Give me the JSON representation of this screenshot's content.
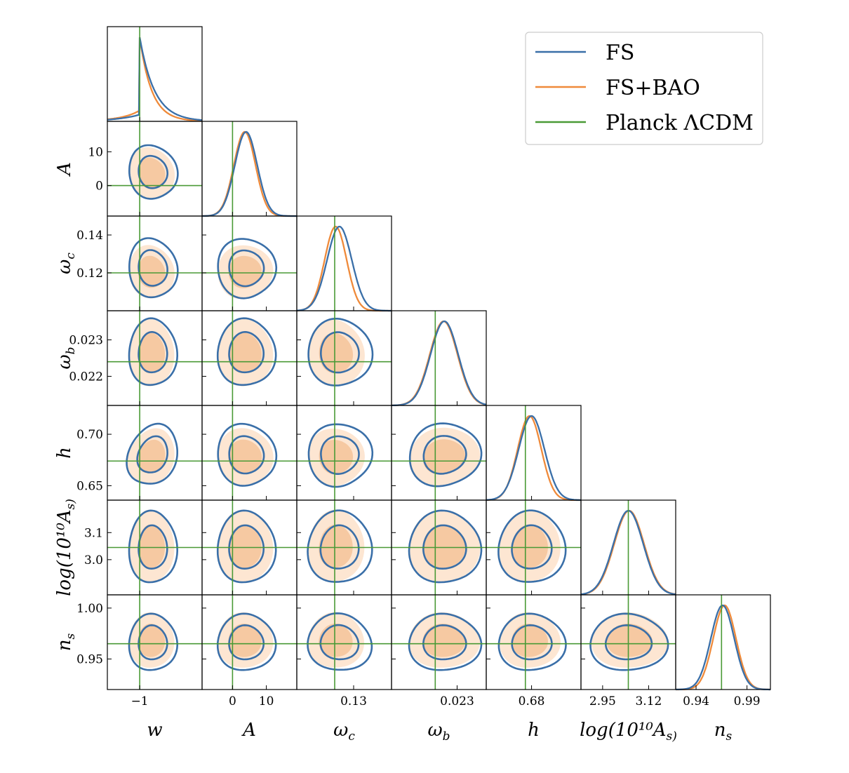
{
  "chart_data": {
    "type": "corner",
    "legend": {
      "placement": "top-right",
      "entries": [
        {
          "label": "FS",
          "color": "#3a6fa8"
        },
        {
          "label": "FS+BAO",
          "color": "#ef8a3a"
        },
        {
          "label": "Planck ΛCDM",
          "color": "#4a9a36"
        }
      ]
    },
    "fill_colors": {
      "inner": "#f6c9a2",
      "outer": "#fde6d2"
    },
    "params": [
      {
        "id": "w",
        "label": "w",
        "range": [
          -1.7,
          0.35
        ],
        "truth": -1.0,
        "ticks": [
          {
            "v": -1,
            "t": "−1"
          }
        ],
        "fs": {
          "mean": -0.72,
          "sd": 0.2
        },
        "bao": {
          "mean": -0.75,
          "sd": 0.19
        }
      },
      {
        "id": "A",
        "label": "A",
        "range": [
          -9,
          19
        ],
        "truth": 0,
        "ticks": [
          {
            "v": 0,
            "t": "0"
          },
          {
            "v": 10,
            "t": "10"
          }
        ],
        "fs": {
          "mean": 4.0,
          "sd": 3.3
        },
        "bao": {
          "mean": 3.6,
          "sd": 3.2
        }
      },
      {
        "id": "omega_c",
        "label": "ω_c",
        "range": [
          0.1,
          0.15
        ],
        "truth": 0.12,
        "ticks": [
          {
            "v": 0.12,
            "t": "0.12"
          },
          {
            "v": 0.13,
            "t": "0.13"
          },
          {
            "v": 0.14,
            "t": "0.14"
          }
        ],
        "fs": {
          "mean": 0.1225,
          "sd": 0.0065
        },
        "bao": {
          "mean": 0.1205,
          "sd": 0.0058
        }
      },
      {
        "id": "omega_b",
        "label": "ω_b",
        "range": [
          0.0212,
          0.0238
        ],
        "truth": 0.0224,
        "ticks": [
          {
            "v": 0.022,
            "t": "0.022"
          },
          {
            "v": 0.023,
            "t": "0.023"
          }
        ],
        "fs": {
          "mean": 0.02265,
          "sd": 0.00038
        },
        "bao": {
          "mean": 0.02263,
          "sd": 0.00038
        }
      },
      {
        "id": "h",
        "label": "h",
        "range": [
          0.636,
          0.728
        ],
        "truth": 0.674,
        "ticks": [
          {
            "v": 0.65,
            "t": "0.65"
          },
          {
            "v": 0.68,
            "t": "0.68"
          },
          {
            "v": 0.7,
            "t": "0.70"
          }
        ],
        "fs": {
          "mean": 0.68,
          "sd": 0.0125
        },
        "bao": {
          "mean": 0.678,
          "sd": 0.0115
        }
      },
      {
        "id": "logAs",
        "label": "log(10¹⁰A_s)",
        "range": [
          2.87,
          3.22
        ],
        "truth": 3.045,
        "ticks": [
          {
            "v": 2.95,
            "t": "2.95"
          },
          {
            "v": 3.0,
            "t": "3.0"
          },
          {
            "v": 3.1,
            "t": "3.1"
          },
          {
            "v": 3.12,
            "t": "3.12"
          }
        ],
        "fs": {
          "mean": 3.045,
          "sd": 0.055
        },
        "bao": {
          "mean": 3.048,
          "sd": 0.055
        }
      },
      {
        "id": "n_s",
        "label": "n_s",
        "range": [
          0.92,
          1.013
        ],
        "truth": 0.965,
        "ticks": [
          {
            "v": 0.94,
            "t": "0.94"
          },
          {
            "v": 0.95,
            "t": "0.95"
          },
          {
            "v": 0.99,
            "t": "0.99"
          },
          {
            "v": 1.0,
            "t": "1.00"
          }
        ],
        "fs": {
          "mean": 0.966,
          "sd": 0.0115
        },
        "bao": {
          "mean": 0.968,
          "sd": 0.0112
        }
      }
    ]
  }
}
